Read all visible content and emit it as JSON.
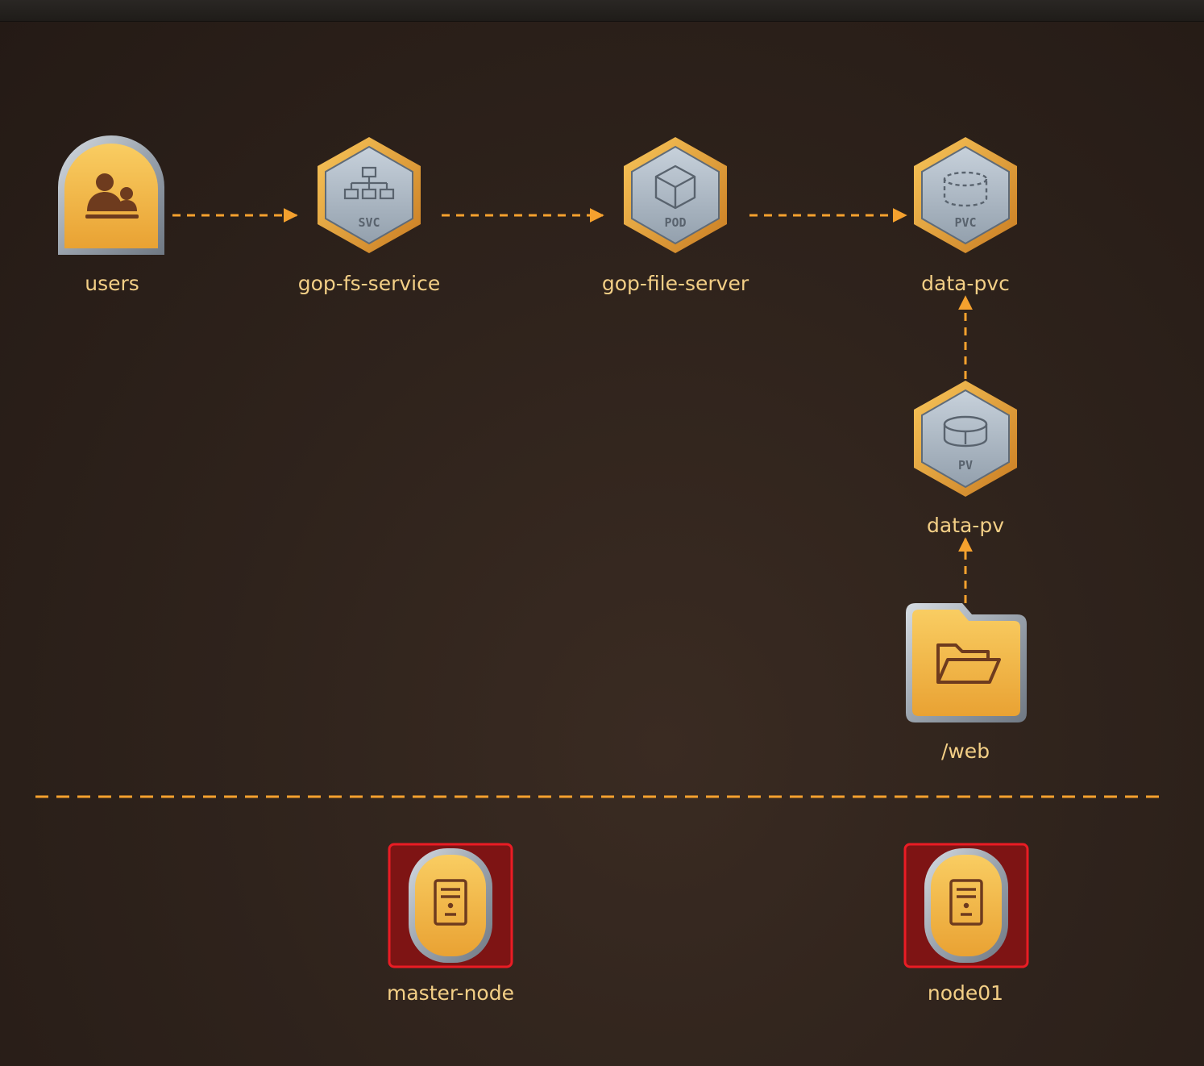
{
  "nodes": {
    "users": {
      "label": "users",
      "icon": "users-icon"
    },
    "service": {
      "label": "gop-fs-service",
      "badge": "SVC",
      "icon": "network-tree-icon"
    },
    "pod": {
      "label": "gop-file-server",
      "badge": "POD",
      "icon": "cube-icon"
    },
    "pvc": {
      "label": "data-pvc",
      "badge": "PVC",
      "icon": "dashed-cylinder-icon"
    },
    "pv": {
      "label": "data-pv",
      "badge": "PV",
      "icon": "disk-icon"
    },
    "web": {
      "label": "/web",
      "icon": "folder-open-icon"
    },
    "master": {
      "label": "master-node",
      "icon": "server-icon"
    },
    "node01": {
      "label": "node01",
      "icon": "server-icon"
    }
  },
  "edges": [
    {
      "from": "users",
      "to": "gop-fs-service"
    },
    {
      "from": "gop-fs-service",
      "to": "gop-file-server"
    },
    {
      "from": "gop-file-server",
      "to": "data-pvc"
    },
    {
      "from": "data-pv",
      "to": "data-pvc"
    },
    {
      "from": "/web",
      "to": "data-pv"
    }
  ],
  "colors": {
    "accent": "#f5a12e",
    "label": "#f3cf86",
    "tile_gold": "#f2b543",
    "steel": "#a5aeb8",
    "highlight_red": "#ea1c24",
    "icon_brown": "#6e3b1e"
  }
}
